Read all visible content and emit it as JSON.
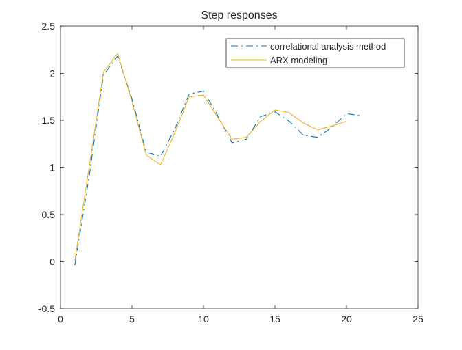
{
  "chart_data": {
    "type": "line",
    "title": "Step responses",
    "xlabel": "",
    "ylabel": "",
    "xlim": [
      0,
      25
    ],
    "ylim": [
      -0.5,
      2.5
    ],
    "xticks": [
      "0",
      "5",
      "10",
      "15",
      "20",
      "25"
    ],
    "yticks": [
      "-0.5",
      "0",
      "0.5",
      "1",
      "1.5",
      "2",
      "2.5"
    ],
    "grid": false,
    "legend_position": "top-right",
    "series": [
      {
        "name": "correlational analysis method",
        "style": "dash-dot",
        "color": "#0072BD",
        "x": [
          1,
          2,
          3,
          4,
          5,
          6,
          7,
          8,
          9,
          10,
          11,
          12,
          13,
          14,
          15,
          16,
          17,
          18,
          19,
          20,
          21
        ],
        "y": [
          -0.04,
          0.9,
          1.98,
          2.18,
          1.73,
          1.16,
          1.12,
          1.41,
          1.78,
          1.81,
          1.55,
          1.26,
          1.3,
          1.54,
          1.59,
          1.49,
          1.34,
          1.32,
          1.43,
          1.57,
          1.55
        ]
      },
      {
        "name": "ARX modeling",
        "style": "solid",
        "color": "#EDB120",
        "x": [
          1,
          2,
          3,
          4,
          5,
          6,
          7,
          8,
          9,
          10,
          11,
          12,
          13,
          14,
          15,
          16,
          17,
          18,
          19,
          20
        ],
        "y": [
          0.01,
          1.0,
          2.01,
          2.21,
          1.7,
          1.13,
          1.03,
          1.37,
          1.75,
          1.77,
          1.53,
          1.3,
          1.32,
          1.49,
          1.61,
          1.58,
          1.47,
          1.4,
          1.44,
          1.49
        ]
      }
    ]
  }
}
